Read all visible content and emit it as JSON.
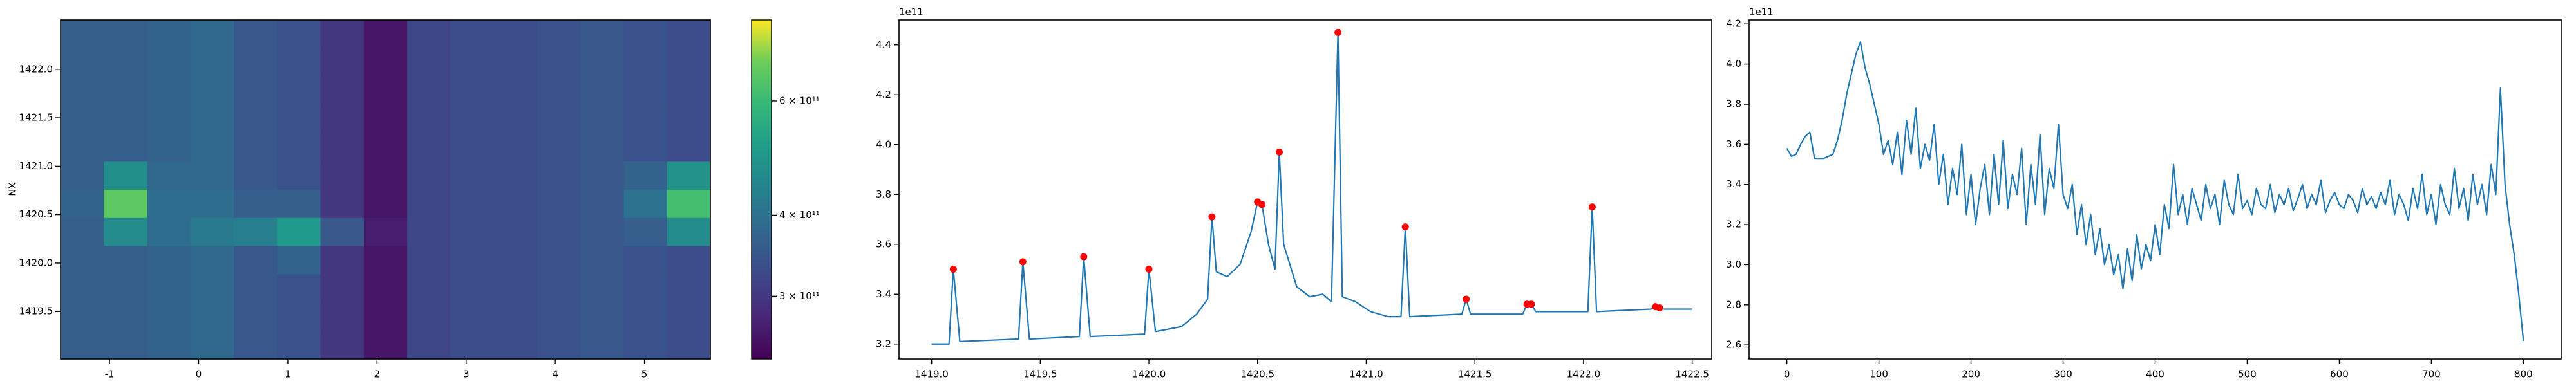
{
  "chart_data": [
    {
      "type": "heatmap",
      "ylabel": "NX",
      "xlim": [
        -1.55,
        5.74
      ],
      "ylim": [
        1419.01,
        1422.51
      ],
      "xticks": [
        -1,
        0,
        1,
        2,
        3,
        4,
        5
      ],
      "yticks": [
        1419.5,
        {
          "value": 1420,
          "label": "1420.0"
        },
        1420.5,
        {
          "value": 1421,
          "label": "1421.0"
        },
        1421.5,
        {
          "value": 1422,
          "label": "1422.0"
        }
      ],
      "x_edges": [
        -1.55,
        -1.064,
        -0.578,
        -0.092,
        0.394,
        0.88,
        1.366,
        1.852,
        2.338,
        2.824,
        3.31,
        3.796,
        4.282,
        4.768,
        5.254,
        5.74
      ],
      "y_edges": [
        1419.01,
        1419.3,
        1419.59,
        1419.89,
        1420.18,
        1420.47,
        1420.76,
        1421.05,
        1421.34,
        1421.64,
        1421.93,
        1422.22,
        1422.51
      ],
      "z": [
        [
          360000000000.0,
          360000000000.0,
          370000000000.0,
          380000000000.0,
          350000000000.0,
          340000000000.0,
          300000000000.0,
          260000000000.0,
          320000000000.0,
          330000000000.0,
          330000000000.0,
          340000000000.0,
          350000000000.0,
          340000000000.0,
          330000000000.0
        ],
        [
          360000000000.0,
          360000000000.0,
          370000000000.0,
          380000000000.0,
          350000000000.0,
          340000000000.0,
          300000000000.0,
          260000000000.0,
          320000000000.0,
          330000000000.0,
          330000000000.0,
          340000000000.0,
          350000000000.0,
          340000000000.0,
          330000000000.0
        ],
        [
          360000000000.0,
          360000000000.0,
          370000000000.0,
          380000000000.0,
          350000000000.0,
          340000000000.0,
          300000000000.0,
          260000000000.0,
          320000000000.0,
          330000000000.0,
          330000000000.0,
          340000000000.0,
          350000000000.0,
          340000000000.0,
          330000000000.0
        ],
        [
          360000000000.0,
          360000000000.0,
          370000000000.0,
          380000000000.0,
          350000000000.0,
          370000000000.0,
          300000000000.0,
          260000000000.0,
          320000000000.0,
          330000000000.0,
          330000000000.0,
          340000000000.0,
          350000000000.0,
          340000000000.0,
          330000000000.0
        ],
        [
          360000000000.0,
          460000000000.0,
          390000000000.0,
          420000000000.0,
          430000000000.0,
          500000000000.0,
          350000000000.0,
          270000000000.0,
          320000000000.0,
          330000000000.0,
          330000000000.0,
          340000000000.0,
          350000000000.0,
          360000000000.0,
          460000000000.0
        ],
        [
          370000000000.0,
          660000000000.0,
          390000000000.0,
          390000000000.0,
          360000000000.0,
          360000000000.0,
          300000000000.0,
          260000000000.0,
          320000000000.0,
          330000000000.0,
          330000000000.0,
          340000000000.0,
          350000000000.0,
          400000000000.0,
          620000000000.0
        ],
        [
          360000000000.0,
          470000000000.0,
          380000000000.0,
          380000000000.0,
          350000000000.0,
          340000000000.0,
          300000000000.0,
          260000000000.0,
          320000000000.0,
          330000000000.0,
          330000000000.0,
          340000000000.0,
          350000000000.0,
          370000000000.0,
          480000000000.0
        ],
        [
          360000000000.0,
          360000000000.0,
          370000000000.0,
          380000000000.0,
          350000000000.0,
          340000000000.0,
          300000000000.0,
          260000000000.0,
          320000000000.0,
          330000000000.0,
          330000000000.0,
          340000000000.0,
          350000000000.0,
          340000000000.0,
          330000000000.0
        ],
        [
          360000000000.0,
          360000000000.0,
          370000000000.0,
          380000000000.0,
          350000000000.0,
          340000000000.0,
          300000000000.0,
          260000000000.0,
          320000000000.0,
          330000000000.0,
          330000000000.0,
          340000000000.0,
          350000000000.0,
          340000000000.0,
          330000000000.0
        ],
        [
          360000000000.0,
          360000000000.0,
          370000000000.0,
          380000000000.0,
          350000000000.0,
          340000000000.0,
          300000000000.0,
          260000000000.0,
          320000000000.0,
          330000000000.0,
          330000000000.0,
          340000000000.0,
          350000000000.0,
          340000000000.0,
          330000000000.0
        ],
        [
          360000000000.0,
          360000000000.0,
          370000000000.0,
          380000000000.0,
          350000000000.0,
          340000000000.0,
          300000000000.0,
          260000000000.0,
          320000000000.0,
          330000000000.0,
          330000000000.0,
          340000000000.0,
          350000000000.0,
          340000000000.0,
          330000000000.0
        ],
        [
          360000000000.0,
          360000000000.0,
          370000000000.0,
          380000000000.0,
          350000000000.0,
          340000000000.0,
          300000000000.0,
          260000000000.0,
          320000000000.0,
          330000000000.0,
          330000000000.0,
          340000000000.0,
          350000000000.0,
          340000000000.0,
          330000000000.0
        ]
      ],
      "colormap": "viridis",
      "color_scale": "log",
      "clim": [
        240000000000.0,
        800000000000.0
      ],
      "colorbar_ticks": [
        {
          "value": 300000000000.0,
          "label": "3 × 10¹¹"
        },
        {
          "value": 400000000000.0,
          "label": "4 × 10¹¹"
        },
        {
          "value": 600000000000.0,
          "label": "6 × 10¹¹"
        }
      ]
    },
    {
      "type": "line",
      "offset_text": "1e11",
      "xlim": [
        1418.85,
        1422.59
      ],
      "ylim": [
        3.14,
        4.5
      ],
      "xticks": [
        {
          "value": 1419,
          "label": "1419.0"
        },
        1419.5,
        {
          "value": 1420,
          "label": "1420.0"
        },
        1420.5,
        {
          "value": 1421,
          "label": "1421.0"
        },
        1421.5,
        {
          "value": 1422,
          "label": "1422.0"
        },
        1422.5
      ],
      "yticks": [
        3.2,
        3.4,
        3.6,
        3.8,
        {
          "value": 4,
          "label": "4.0"
        },
        4.2,
        4.4
      ],
      "series": [
        {
          "color": "#1f77b4",
          "style": "line",
          "x": [
            1419.0,
            1419.08,
            1419.1,
            1419.13,
            1419.4,
            1419.42,
            1419.45,
            1419.68,
            1419.7,
            1419.73,
            1419.98,
            1420.0,
            1420.03,
            1420.15,
            1420.22,
            1420.27,
            1420.29,
            1420.31,
            1420.36,
            1420.42,
            1420.47,
            1420.5,
            1420.52,
            1420.55,
            1420.58,
            1420.6,
            1420.62,
            1420.68,
            1420.74,
            1420.8,
            1420.84,
            1420.87,
            1420.89,
            1420.95,
            1421.02,
            1421.1,
            1421.16,
            1421.18,
            1421.2,
            1421.44,
            1421.46,
            1421.48,
            1421.72,
            1421.74,
            1421.76,
            1421.78,
            1422.02,
            1422.04,
            1422.06,
            1422.31,
            1422.33,
            1422.35,
            1422.37,
            1422.5
          ],
          "values": [
            3.2,
            3.2,
            3.5,
            3.21,
            3.22,
            3.53,
            3.22,
            3.23,
            3.55,
            3.23,
            3.24,
            3.5,
            3.25,
            3.27,
            3.32,
            3.38,
            3.71,
            3.49,
            3.47,
            3.52,
            3.65,
            3.77,
            3.76,
            3.6,
            3.5,
            3.97,
            3.6,
            3.43,
            3.39,
            3.4,
            3.37,
            4.45,
            3.39,
            3.37,
            3.33,
            3.31,
            3.31,
            3.67,
            3.31,
            3.32,
            3.38,
            3.32,
            3.32,
            3.36,
            3.36,
            3.33,
            3.33,
            3.75,
            3.33,
            3.34,
            3.35,
            3.345,
            3.34,
            3.34
          ]
        },
        {
          "color": "#ff0000",
          "style": "markers",
          "x": [
            1419.1,
            1419.42,
            1419.7,
            1420.0,
            1420.29,
            1420.5,
            1420.52,
            1420.6,
            1420.87,
            1421.18,
            1421.46,
            1421.74,
            1421.76,
            1422.04,
            1422.33,
            1422.35
          ],
          "values": [
            3.5,
            3.53,
            3.55,
            3.5,
            3.71,
            3.77,
            3.76,
            3.97,
            4.45,
            3.67,
            3.38,
            3.36,
            3.36,
            3.75,
            3.35,
            3.345
          ]
        }
      ]
    },
    {
      "type": "line",
      "offset_text": "1e11",
      "xlim": [
        -41,
        841
      ],
      "ylim": [
        2.53,
        4.22
      ],
      "xticks": [
        0,
        100,
        200,
        300,
        400,
        500,
        600,
        700,
        800
      ],
      "yticks": [
        2.6,
        2.8,
        {
          "value": 3,
          "label": "3.0"
        },
        3.2,
        3.4,
        3.6,
        3.8,
        {
          "value": 4,
          "label": "4.0"
        },
        4.2
      ],
      "series": [
        {
          "color": "#1f77b4",
          "style": "line",
          "x": [
            0,
            5,
            10,
            15,
            20,
            25,
            30,
            35,
            40,
            45,
            50,
            55,
            60,
            65,
            70,
            75,
            80,
            85,
            90,
            95,
            100,
            105,
            110,
            115,
            120,
            125,
            130,
            135,
            140,
            145,
            150,
            155,
            160,
            165,
            170,
            175,
            180,
            185,
            190,
            195,
            200,
            205,
            210,
            215,
            220,
            225,
            230,
            235,
            240,
            245,
            250,
            255,
            260,
            265,
            270,
            275,
            280,
            285,
            290,
            295,
            300,
            305,
            310,
            315,
            320,
            325,
            330,
            335,
            340,
            345,
            350,
            355,
            360,
            365,
            370,
            375,
            380,
            385,
            390,
            395,
            400,
            405,
            410,
            415,
            420,
            425,
            430,
            435,
            440,
            445,
            450,
            455,
            460,
            465,
            470,
            475,
            480,
            485,
            490,
            495,
            500,
            505,
            510,
            515,
            520,
            525,
            530,
            535,
            540,
            545,
            550,
            555,
            560,
            565,
            570,
            575,
            580,
            585,
            590,
            595,
            600,
            605,
            610,
            615,
            620,
            625,
            630,
            635,
            640,
            645,
            650,
            655,
            660,
            665,
            670,
            675,
            680,
            685,
            690,
            695,
            700,
            705,
            710,
            715,
            720,
            725,
            730,
            735,
            740,
            745,
            750,
            755,
            760,
            765,
            770,
            775,
            780,
            785,
            790,
            795,
            800
          ],
          "values": [
            3.58,
            3.54,
            3.55,
            3.6,
            3.64,
            3.66,
            3.53,
            3.53,
            3.53,
            3.54,
            3.55,
            3.62,
            3.72,
            3.85,
            3.95,
            4.05,
            4.11,
            3.98,
            3.9,
            3.8,
            3.7,
            3.55,
            3.62,
            3.5,
            3.66,
            3.45,
            3.72,
            3.55,
            3.78,
            3.48,
            3.6,
            3.52,
            3.7,
            3.4,
            3.55,
            3.3,
            3.48,
            3.35,
            3.6,
            3.25,
            3.45,
            3.2,
            3.38,
            3.5,
            3.25,
            3.55,
            3.3,
            3.62,
            3.28,
            3.45,
            3.35,
            3.58,
            3.2,
            3.5,
            3.3,
            3.65,
            3.25,
            3.48,
            3.38,
            3.7,
            3.35,
            3.28,
            3.4,
            3.15,
            3.3,
            3.1,
            3.25,
            3.05,
            3.18,
            3.0,
            3.1,
            2.95,
            3.05,
            2.88,
            3.08,
            2.92,
            3.15,
            2.98,
            3.1,
            3.02,
            3.2,
            3.05,
            3.3,
            3.18,
            3.5,
            3.25,
            3.35,
            3.2,
            3.38,
            3.3,
            3.22,
            3.4,
            3.28,
            3.35,
            3.2,
            3.42,
            3.3,
            3.25,
            3.45,
            3.28,
            3.32,
            3.25,
            3.38,
            3.3,
            3.28,
            3.4,
            3.26,
            3.35,
            3.3,
            3.38,
            3.27,
            3.33,
            3.4,
            3.28,
            3.35,
            3.3,
            3.42,
            3.26,
            3.32,
            3.36,
            3.3,
            3.28,
            3.35,
            3.32,
            3.26,
            3.38,
            3.3,
            3.34,
            3.28,
            3.36,
            3.3,
            3.42,
            3.25,
            3.35,
            3.3,
            3.22,
            3.38,
            3.28,
            3.45,
            3.25,
            3.35,
            3.2,
            3.4,
            3.3,
            3.25,
            3.48,
            3.28,
            3.38,
            3.22,
            3.45,
            3.3,
            3.4,
            3.25,
            3.5,
            3.35,
            3.88,
            3.4,
            3.2,
            3.05,
            2.85,
            2.62
          ]
        }
      ]
    }
  ]
}
